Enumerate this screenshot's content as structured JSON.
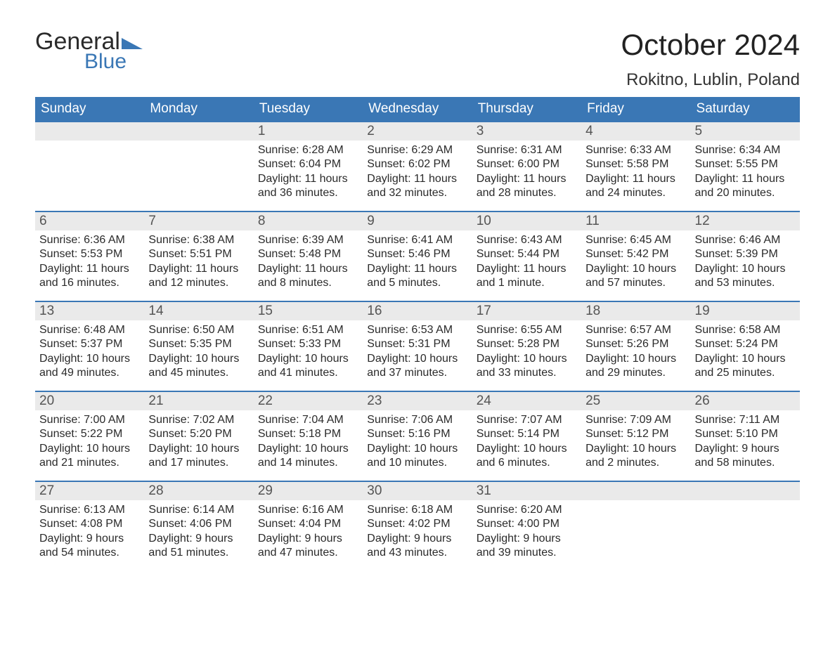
{
  "header": {
    "logo_general": "General",
    "logo_blue": "Blue",
    "month_title": "October 2024",
    "location": "Rokitno, Lublin, Poland"
  },
  "style": {
    "header_bg": "#3a77b5",
    "header_text": "#ffffff",
    "daynum_bg": "#eaeaea",
    "daynum_text": "#555555",
    "body_text": "#2a2a2a",
    "row_border": "#3a77b5",
    "page_bg": "#ffffff",
    "logo_blue_color": "#3a77b5",
    "month_title_fontsize": 42,
    "location_fontsize": 24,
    "weekday_fontsize": 19,
    "daynum_fontsize": 19,
    "body_fontsize": 16
  },
  "weekdays": [
    "Sunday",
    "Monday",
    "Tuesday",
    "Wednesday",
    "Thursday",
    "Friday",
    "Saturday"
  ],
  "weeks": [
    [
      null,
      null,
      {
        "n": "1",
        "sr": "Sunrise: 6:28 AM",
        "ss": "Sunset: 6:04 PM",
        "d1": "Daylight: 11 hours",
        "d2": "and 36 minutes."
      },
      {
        "n": "2",
        "sr": "Sunrise: 6:29 AM",
        "ss": "Sunset: 6:02 PM",
        "d1": "Daylight: 11 hours",
        "d2": "and 32 minutes."
      },
      {
        "n": "3",
        "sr": "Sunrise: 6:31 AM",
        "ss": "Sunset: 6:00 PM",
        "d1": "Daylight: 11 hours",
        "d2": "and 28 minutes."
      },
      {
        "n": "4",
        "sr": "Sunrise: 6:33 AM",
        "ss": "Sunset: 5:58 PM",
        "d1": "Daylight: 11 hours",
        "d2": "and 24 minutes."
      },
      {
        "n": "5",
        "sr": "Sunrise: 6:34 AM",
        "ss": "Sunset: 5:55 PM",
        "d1": "Daylight: 11 hours",
        "d2": "and 20 minutes."
      }
    ],
    [
      {
        "n": "6",
        "sr": "Sunrise: 6:36 AM",
        "ss": "Sunset: 5:53 PM",
        "d1": "Daylight: 11 hours",
        "d2": "and 16 minutes."
      },
      {
        "n": "7",
        "sr": "Sunrise: 6:38 AM",
        "ss": "Sunset: 5:51 PM",
        "d1": "Daylight: 11 hours",
        "d2": "and 12 minutes."
      },
      {
        "n": "8",
        "sr": "Sunrise: 6:39 AM",
        "ss": "Sunset: 5:48 PM",
        "d1": "Daylight: 11 hours",
        "d2": "and 8 minutes."
      },
      {
        "n": "9",
        "sr": "Sunrise: 6:41 AM",
        "ss": "Sunset: 5:46 PM",
        "d1": "Daylight: 11 hours",
        "d2": "and 5 minutes."
      },
      {
        "n": "10",
        "sr": "Sunrise: 6:43 AM",
        "ss": "Sunset: 5:44 PM",
        "d1": "Daylight: 11 hours",
        "d2": "and 1 minute."
      },
      {
        "n": "11",
        "sr": "Sunrise: 6:45 AM",
        "ss": "Sunset: 5:42 PM",
        "d1": "Daylight: 10 hours",
        "d2": "and 57 minutes."
      },
      {
        "n": "12",
        "sr": "Sunrise: 6:46 AM",
        "ss": "Sunset: 5:39 PM",
        "d1": "Daylight: 10 hours",
        "d2": "and 53 minutes."
      }
    ],
    [
      {
        "n": "13",
        "sr": "Sunrise: 6:48 AM",
        "ss": "Sunset: 5:37 PM",
        "d1": "Daylight: 10 hours",
        "d2": "and 49 minutes."
      },
      {
        "n": "14",
        "sr": "Sunrise: 6:50 AM",
        "ss": "Sunset: 5:35 PM",
        "d1": "Daylight: 10 hours",
        "d2": "and 45 minutes."
      },
      {
        "n": "15",
        "sr": "Sunrise: 6:51 AM",
        "ss": "Sunset: 5:33 PM",
        "d1": "Daylight: 10 hours",
        "d2": "and 41 minutes."
      },
      {
        "n": "16",
        "sr": "Sunrise: 6:53 AM",
        "ss": "Sunset: 5:31 PM",
        "d1": "Daylight: 10 hours",
        "d2": "and 37 minutes."
      },
      {
        "n": "17",
        "sr": "Sunrise: 6:55 AM",
        "ss": "Sunset: 5:28 PM",
        "d1": "Daylight: 10 hours",
        "d2": "and 33 minutes."
      },
      {
        "n": "18",
        "sr": "Sunrise: 6:57 AM",
        "ss": "Sunset: 5:26 PM",
        "d1": "Daylight: 10 hours",
        "d2": "and 29 minutes."
      },
      {
        "n": "19",
        "sr": "Sunrise: 6:58 AM",
        "ss": "Sunset: 5:24 PM",
        "d1": "Daylight: 10 hours",
        "d2": "and 25 minutes."
      }
    ],
    [
      {
        "n": "20",
        "sr": "Sunrise: 7:00 AM",
        "ss": "Sunset: 5:22 PM",
        "d1": "Daylight: 10 hours",
        "d2": "and 21 minutes."
      },
      {
        "n": "21",
        "sr": "Sunrise: 7:02 AM",
        "ss": "Sunset: 5:20 PM",
        "d1": "Daylight: 10 hours",
        "d2": "and 17 minutes."
      },
      {
        "n": "22",
        "sr": "Sunrise: 7:04 AM",
        "ss": "Sunset: 5:18 PM",
        "d1": "Daylight: 10 hours",
        "d2": "and 14 minutes."
      },
      {
        "n": "23",
        "sr": "Sunrise: 7:06 AM",
        "ss": "Sunset: 5:16 PM",
        "d1": "Daylight: 10 hours",
        "d2": "and 10 minutes."
      },
      {
        "n": "24",
        "sr": "Sunrise: 7:07 AM",
        "ss": "Sunset: 5:14 PM",
        "d1": "Daylight: 10 hours",
        "d2": "and 6 minutes."
      },
      {
        "n": "25",
        "sr": "Sunrise: 7:09 AM",
        "ss": "Sunset: 5:12 PM",
        "d1": "Daylight: 10 hours",
        "d2": "and 2 minutes."
      },
      {
        "n": "26",
        "sr": "Sunrise: 7:11 AM",
        "ss": "Sunset: 5:10 PM",
        "d1": "Daylight: 9 hours",
        "d2": "and 58 minutes."
      }
    ],
    [
      {
        "n": "27",
        "sr": "Sunrise: 6:13 AM",
        "ss": "Sunset: 4:08 PM",
        "d1": "Daylight: 9 hours",
        "d2": "and 54 minutes."
      },
      {
        "n": "28",
        "sr": "Sunrise: 6:14 AM",
        "ss": "Sunset: 4:06 PM",
        "d1": "Daylight: 9 hours",
        "d2": "and 51 minutes."
      },
      {
        "n": "29",
        "sr": "Sunrise: 6:16 AM",
        "ss": "Sunset: 4:04 PM",
        "d1": "Daylight: 9 hours",
        "d2": "and 47 minutes."
      },
      {
        "n": "30",
        "sr": "Sunrise: 6:18 AM",
        "ss": "Sunset: 4:02 PM",
        "d1": "Daylight: 9 hours",
        "d2": "and 43 minutes."
      },
      {
        "n": "31",
        "sr": "Sunrise: 6:20 AM",
        "ss": "Sunset: 4:00 PM",
        "d1": "Daylight: 9 hours",
        "d2": "and 39 minutes."
      },
      null,
      null
    ]
  ]
}
